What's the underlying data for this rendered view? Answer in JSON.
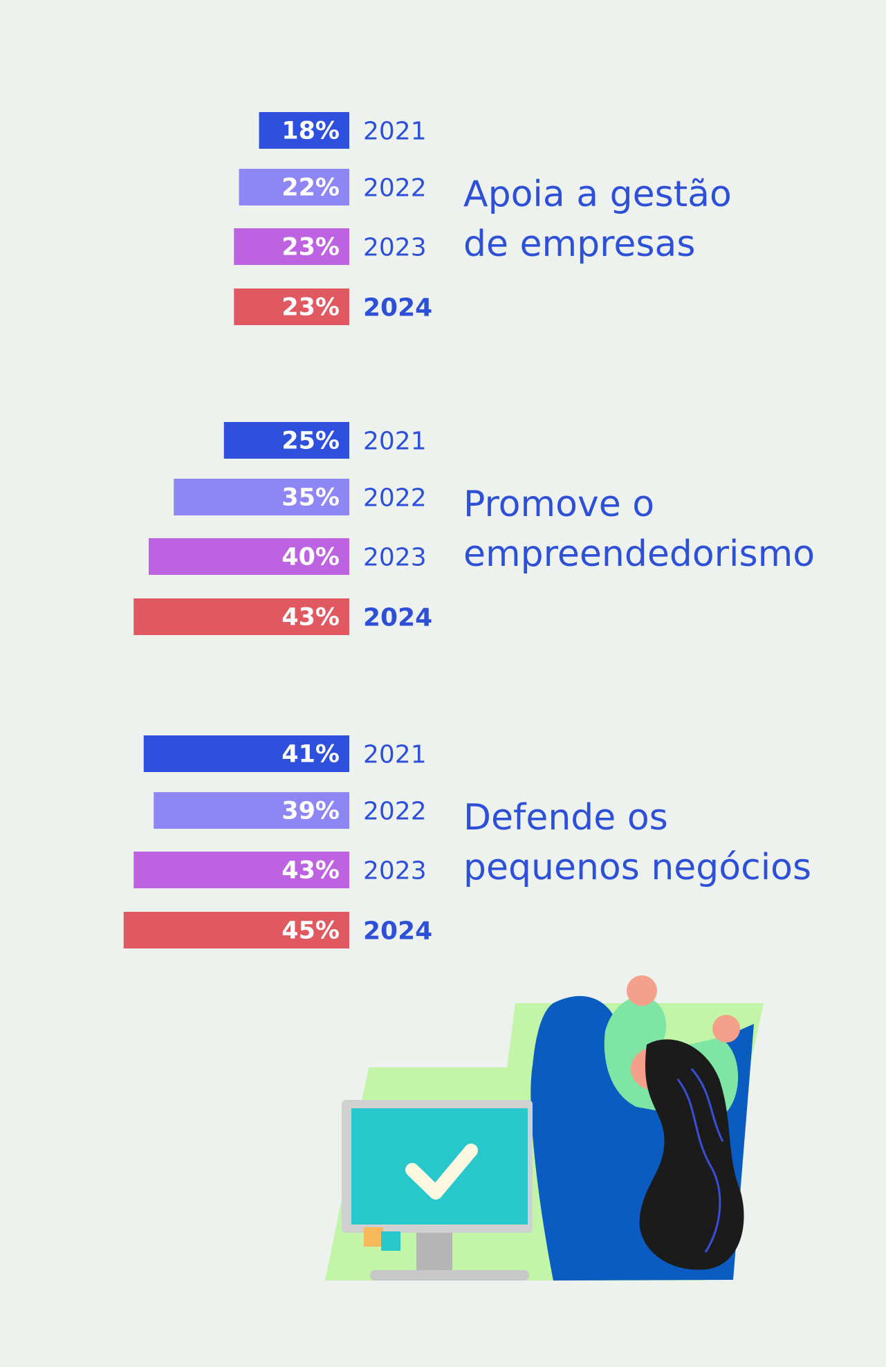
{
  "chart_data": {
    "type": "bar",
    "orientation": "horizontal",
    "series": [
      {
        "name": "2021",
        "color": "#2e50dc"
      },
      {
        "name": "2022",
        "color": "#8f86f5"
      },
      {
        "name": "2023",
        "color": "#bd63e1"
      },
      {
        "name": "2024",
        "color": "#e05860"
      }
    ],
    "groups": [
      {
        "title_lines": [
          "Apoia a gestão",
          "de empresas"
        ],
        "values": [
          18,
          22,
          23,
          23
        ]
      },
      {
        "title_lines": [
          "Promove o",
          "empreendedorismo"
        ],
        "values": [
          25,
          35,
          40,
          43
        ]
      },
      {
        "title_lines": [
          "Defende os",
          "pequenos negócios"
        ],
        "values": [
          41,
          39,
          43,
          45
        ]
      }
    ],
    "value_suffix": "%",
    "highlight_year": "2024"
  },
  "illustration": {
    "icon": "person-celebrating-at-computer-with-checkmark"
  }
}
